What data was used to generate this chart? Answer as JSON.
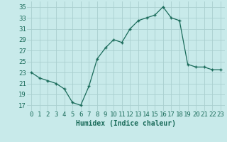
{
  "x": [
    0,
    1,
    2,
    3,
    4,
    5,
    6,
    7,
    8,
    9,
    10,
    11,
    12,
    13,
    14,
    15,
    16,
    17,
    18,
    19,
    20,
    21,
    22,
    23
  ],
  "y": [
    23,
    22,
    21.5,
    21,
    20,
    17.5,
    17,
    20.5,
    25.5,
    27.5,
    29,
    28.5,
    31,
    32.5,
    33,
    33.5,
    35,
    33,
    32.5,
    24.5,
    24,
    24,
    23.5,
    23.5
  ],
  "xlabel": "Humidex (Indice chaleur)",
  "xlim": [
    -0.5,
    23.5
  ],
  "ylim": [
    16,
    36
  ],
  "yticks": [
    17,
    19,
    21,
    23,
    25,
    27,
    29,
    31,
    33,
    35
  ],
  "xtick_labels": [
    "0",
    "1",
    "2",
    "3",
    "4",
    "5",
    "6",
    "7",
    "8",
    "9",
    "10",
    "11",
    "12",
    "13",
    "14",
    "15",
    "16",
    "17",
    "18",
    "19",
    "20",
    "21",
    "22",
    "23"
  ],
  "line_color": "#1a6b5a",
  "bg_color": "#c8eaea",
  "grid_color": "#aacfcf",
  "label_fontsize": 7,
  "tick_fontsize": 6.5
}
